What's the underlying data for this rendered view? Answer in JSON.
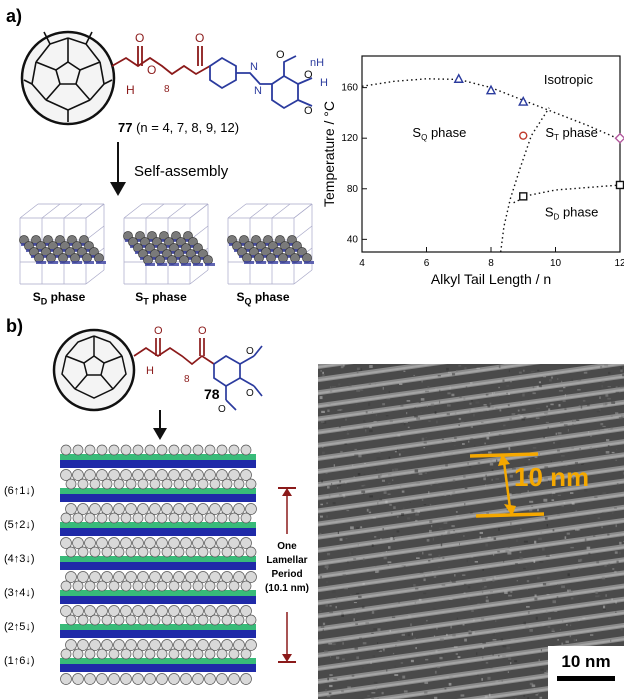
{
  "panel_a": {
    "label": "a)",
    "compound_number": "77",
    "compound_suffix": " (n = 4, 7, 8, 9, 12)",
    "arrow_label": "Self-assembly",
    "phases": [
      {
        "main": "S",
        "sub": "D",
        "rest": " phase"
      },
      {
        "main": "S",
        "sub": "T",
        "rest": " phase"
      },
      {
        "main": "S",
        "sub": "Q",
        "rest": " phase"
      }
    ],
    "structure_labels": {
      "n": "n",
      "H": "H",
      "O": "O",
      "eight": "8"
    }
  },
  "chart_data": {
    "type": "scatter",
    "xlabel": "Alkyl Tail Length / n",
    "ylabel": "Temperature / °C",
    "xlim": [
      4,
      12
    ],
    "ylim": [
      30,
      185
    ],
    "xticks": [
      4,
      6,
      8,
      10,
      12
    ],
    "yticks": [
      40,
      80,
      120,
      160
    ],
    "region_labels": [
      {
        "main": "S",
        "sub": "Q",
        "rest": " phase",
        "x": 6.4,
        "y": 121
      },
      {
        "main": "S",
        "sub": "T",
        "rest": " phase",
        "x": 10.5,
        "y": 121
      },
      {
        "main": "S",
        "sub": "D",
        "rest": " phase",
        "x": 10.5,
        "y": 58
      },
      {
        "main": "Isotropic",
        "sub": "",
        "rest": "",
        "x": 10.4,
        "y": 163
      }
    ],
    "series": [
      {
        "marker": "triangle",
        "color": "#2b3b9e",
        "points": [
          [
            7,
            167
          ],
          [
            8,
            158
          ],
          [
            9,
            149
          ]
        ]
      },
      {
        "marker": "circle",
        "color": "#c0392b",
        "points": [
          [
            9,
            122
          ]
        ]
      },
      {
        "marker": "diamond",
        "color": "#b1569c",
        "points": [
          [
            12,
            120
          ]
        ]
      },
      {
        "marker": "square",
        "color": "#111111",
        "points": [
          [
            9,
            74
          ],
          [
            12,
            83
          ]
        ]
      }
    ],
    "boundaries": [
      {
        "points": [
          [
            4,
            161
          ],
          [
            5,
            165
          ],
          [
            6,
            167
          ],
          [
            7,
            166.5
          ],
          [
            8,
            160
          ],
          [
            9,
            150
          ],
          [
            10,
            140
          ],
          [
            11,
            130
          ],
          [
            12,
            119
          ]
        ]
      },
      {
        "points": [
          [
            8.3,
            30
          ],
          [
            8.4,
            50
          ],
          [
            8.6,
            72
          ],
          [
            8.9,
            96
          ],
          [
            9.25,
            122
          ],
          [
            9.8,
            144
          ]
        ]
      },
      {
        "points": [
          [
            8.7,
            69
          ],
          [
            9.2,
            75
          ],
          [
            10,
            79
          ],
          [
            11,
            81
          ],
          [
            12,
            83
          ]
        ]
      }
    ]
  },
  "panel_b": {
    "label": "b)",
    "compound_number": "78",
    "layer_labels": [
      "(6↑1↓)",
      "(5↑2↓)",
      "(4↑3↓)",
      "(3↑4↓)",
      "(2↑5↓)",
      "(1↑6↓)"
    ],
    "period_lines": [
      "One",
      "Lamellar",
      "Period",
      "(10.1 nm)"
    ],
    "tem_measure": "10 nm",
    "scale_bar": "10 nm",
    "colors": {
      "fullerene": "#d9d9d9",
      "blue": "#1f2aa8",
      "green": "#22b46a",
      "accent": "#f5a800",
      "period": "#8b1a1a"
    }
  }
}
